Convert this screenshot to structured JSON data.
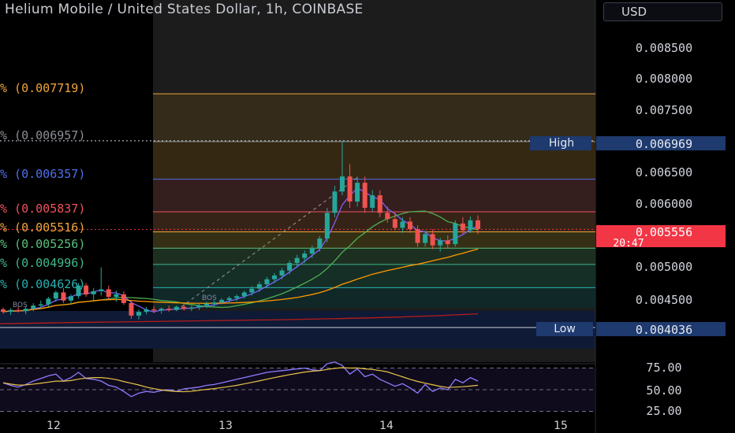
{
  "header": {
    "title": "Helium Mobile / United States Dollar, 1h, COINBASE",
    "currency": "USD"
  },
  "price_axis": {
    "ticks": [
      "0.008500",
      "0.008000",
      "0.007500",
      "0.006500",
      "0.006000",
      "0.005000",
      "0.004500"
    ]
  },
  "price_badges": {
    "high_label": "High",
    "high_value": "0.006969",
    "low_label": "Low",
    "low_value": "0.004036",
    "current_value": "0.005556",
    "countdown": "20:47"
  },
  "fib_levels": [
    {
      "text": "% (0.007719)",
      "price": 0.007719,
      "color": "#f0a53a"
    },
    {
      "text": "% (0.006957)",
      "price": 0.006957,
      "color": "#8c8f96"
    },
    {
      "text": "% (0.006357)",
      "price": 0.006357,
      "color": "#4f6fe8"
    },
    {
      "text": "% (0.005837)",
      "price": 0.005837,
      "color": "#f0525b"
    },
    {
      "text": "% (0.005516)",
      "price": 0.005516,
      "color": "#f0a53a"
    },
    {
      "text": "% (0.005256)",
      "price": 0.005256,
      "color": "#59c27a"
    },
    {
      "text": "% (0.004996)",
      "price": 0.004996,
      "color": "#3fb98a"
    },
    {
      "text": "% (0.004626)",
      "price": 0.004626,
      "color": "#2ab0b0"
    }
  ],
  "annotations": {
    "bos_left": "BOS",
    "bos_mid": "BOS"
  },
  "rsi_axis": {
    "ticks": [
      "75.00",
      "50.00",
      "25.00"
    ]
  },
  "time_axis": {
    "labels": [
      "12",
      "13",
      "14",
      "15"
    ]
  },
  "colors": {
    "up": "#26a69a",
    "down": "#ef5350",
    "price_badge": "#f23645",
    "high_low_badge": "#1e3a6e"
  },
  "candles": [
    [
      0.00428,
      0.00431,
      0.00421,
      0.00424
    ],
    [
      0.00424,
      0.0043,
      0.00419,
      0.00427
    ],
    [
      0.00427,
      0.00433,
      0.00423,
      0.00425
    ],
    [
      0.00425,
      0.00432,
      0.0042,
      0.00429
    ],
    [
      0.00429,
      0.00438,
      0.00425,
      0.00434
    ],
    [
      0.00434,
      0.00442,
      0.0043,
      0.00436
    ],
    [
      0.00436,
      0.00448,
      0.00432,
      0.00445
    ],
    [
      0.00445,
      0.00458,
      0.0044,
      0.00455
    ],
    [
      0.00455,
      0.00462,
      0.00438,
      0.00442
    ],
    [
      0.00442,
      0.00452,
      0.00436,
      0.00449
    ],
    [
      0.00449,
      0.0047,
      0.00445,
      0.00466
    ],
    [
      0.00466,
      0.0047,
      0.00448,
      0.00452
    ],
    [
      0.00452,
      0.00462,
      0.0044,
      0.00457
    ],
    [
      0.00457,
      0.00495,
      0.0045,
      0.0046
    ],
    [
      0.0046,
      0.00466,
      0.00443,
      0.00448
    ],
    [
      0.00448,
      0.00458,
      0.0044,
      0.00452
    ],
    [
      0.00452,
      0.00457,
      0.00435,
      0.00438
    ],
    [
      0.00438,
      0.00442,
      0.00413,
      0.00418
    ],
    [
      0.00418,
      0.00428,
      0.00412,
      0.00424
    ],
    [
      0.00424,
      0.00432,
      0.0042,
      0.00428
    ],
    [
      0.00428,
      0.00433,
      0.00422,
      0.00426
    ],
    [
      0.00426,
      0.00431,
      0.00421,
      0.00429
    ],
    [
      0.00429,
      0.00434,
      0.00424,
      0.00427
    ],
    [
      0.00427,
      0.00434,
      0.00425,
      0.00432
    ],
    [
      0.00432,
      0.00436,
      0.00426,
      0.00429
    ],
    [
      0.00429,
      0.00434,
      0.00425,
      0.00431
    ],
    [
      0.00431,
      0.00438,
      0.00427,
      0.00434
    ],
    [
      0.00434,
      0.0044,
      0.0043,
      0.00437
    ],
    [
      0.00437,
      0.00442,
      0.00432,
      0.00439
    ],
    [
      0.00439,
      0.00446,
      0.00436,
      0.00443
    ],
    [
      0.00443,
      0.00449,
      0.00438,
      0.00446
    ],
    [
      0.00446,
      0.00452,
      0.00441,
      0.00449
    ],
    [
      0.00449,
      0.00458,
      0.00445,
      0.00455
    ],
    [
      0.00455,
      0.00465,
      0.0045,
      0.00461
    ],
    [
      0.00461,
      0.00472,
      0.00456,
      0.00468
    ],
    [
      0.00468,
      0.0048,
      0.00462,
      0.00476
    ],
    [
      0.00476,
      0.00486,
      0.0047,
      0.00482
    ],
    [
      0.00482,
      0.00494,
      0.00476,
      0.0049
    ],
    [
      0.0049,
      0.00506,
      0.00484,
      0.00502
    ],
    [
      0.00502,
      0.00515,
      0.00495,
      0.0051
    ],
    [
      0.0051,
      0.00522,
      0.00502,
      0.00517
    ],
    [
      0.00517,
      0.0053,
      0.0051,
      0.00526
    ],
    [
      0.00526,
      0.00545,
      0.0052,
      0.00541
    ],
    [
      0.00541,
      0.0059,
      0.00535,
      0.00582
    ],
    [
      0.00582,
      0.00625,
      0.00575,
      0.00616
    ],
    [
      0.00616,
      0.00697,
      0.0061,
      0.0064
    ],
    [
      0.0064,
      0.0066,
      0.0059,
      0.006
    ],
    [
      0.006,
      0.0064,
      0.00592,
      0.0063
    ],
    [
      0.0063,
      0.0064,
      0.00582,
      0.0059
    ],
    [
      0.0059,
      0.00618,
      0.00584,
      0.0061
    ],
    [
      0.0061,
      0.00618,
      0.00575,
      0.00582
    ],
    [
      0.00582,
      0.00592,
      0.00566,
      0.00572
    ],
    [
      0.00572,
      0.00582,
      0.00554,
      0.00558
    ],
    [
      0.00558,
      0.00575,
      0.0055,
      0.00568
    ],
    [
      0.00568,
      0.00575,
      0.0055,
      0.00556
    ],
    [
      0.00556,
      0.00562,
      0.00528,
      0.00534
    ],
    [
      0.00534,
      0.00554,
      0.00528,
      0.00548
    ],
    [
      0.00548,
      0.00556,
      0.00524,
      0.0053
    ],
    [
      0.0053,
      0.00542,
      0.0052,
      0.00538
    ],
    [
      0.00538,
      0.00546,
      0.00526,
      0.00532
    ],
    [
      0.00532,
      0.0057,
      0.00528,
      0.00565
    ],
    [
      0.00565,
      0.00575,
      0.00548,
      0.00554
    ],
    [
      0.00554,
      0.00576,
      0.0055,
      0.0057
    ],
    [
      0.0057,
      0.00578,
      0.00548,
      0.00556
    ]
  ],
  "rsi": [
    58,
    55,
    53,
    56,
    60,
    63,
    66,
    68,
    60,
    64,
    70,
    63,
    62,
    60,
    55,
    53,
    48,
    42,
    46,
    48,
    47,
    49,
    50,
    48,
    51,
    52,
    53,
    55,
    56,
    58,
    60,
    62,
    64,
    66,
    68,
    70,
    71,
    72,
    73,
    74,
    75,
    73,
    72,
    80,
    82,
    78,
    68,
    74,
    65,
    68,
    62,
    58,
    54,
    57,
    52,
    46,
    56,
    48,
    52,
    50,
    62,
    58,
    64,
    60
  ]
}
